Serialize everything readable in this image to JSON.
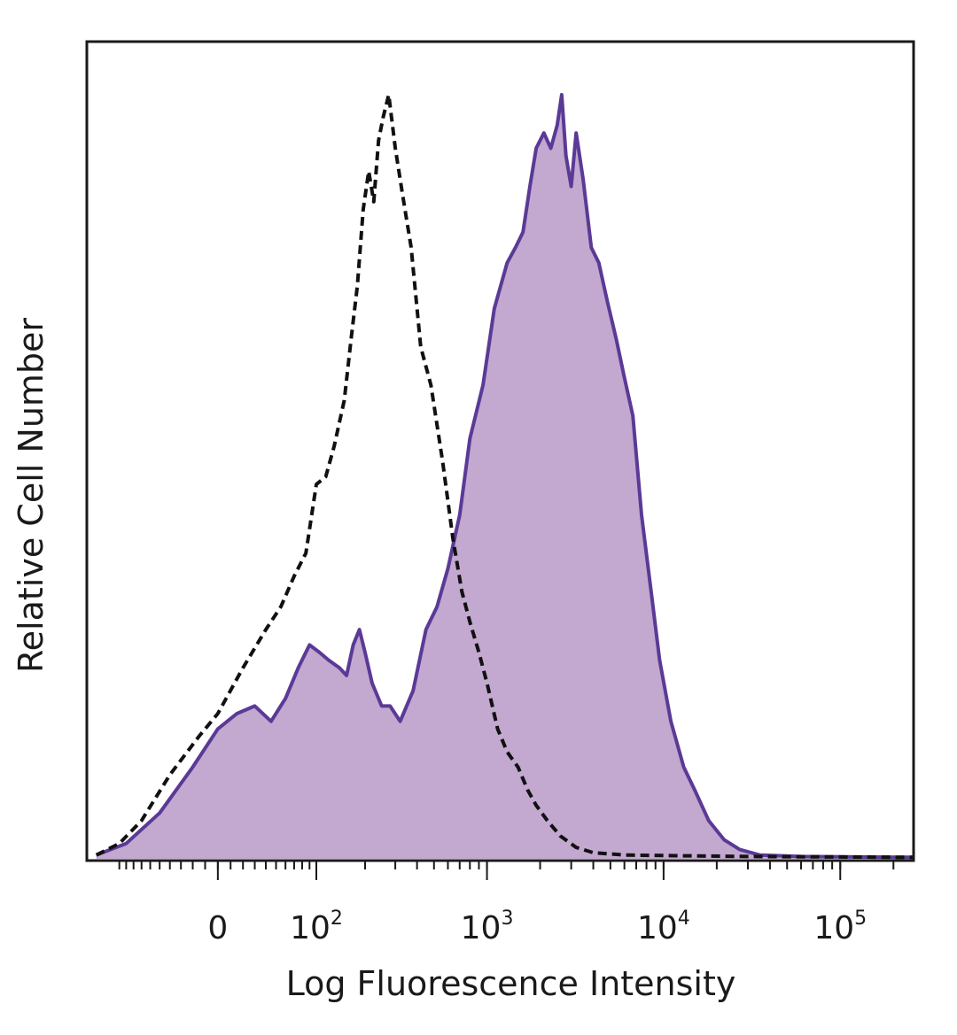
{
  "chart_data": {
    "type": "area",
    "xlabel": "Log Fluorescence Intensity",
    "ylabel": "Relative Cell Number",
    "x_scale": "biexponential",
    "ticks": [
      {
        "value": 0,
        "base": "0",
        "exp": ""
      },
      {
        "value": 100,
        "base": "10",
        "exp": "2"
      },
      {
        "value": 1000,
        "base": "10",
        "exp": "3"
      },
      {
        "value": 10000,
        "base": "10",
        "exp": "4"
      },
      {
        "value": 100000,
        "base": "10",
        "exp": "5"
      }
    ],
    "xlim": [
      -160,
      260000
    ],
    "ylim": [
      0,
      100
    ],
    "grid": false,
    "colors": {
      "filled_series_stroke": "#5a3a96",
      "filled_series_fill": "#c3a8cf",
      "control_series_stroke": "#111111"
    },
    "series": [
      {
        "style": "filled-solid",
        "points": [
          [
            -140,
            0.5
          ],
          [
            -90,
            2
          ],
          [
            -50,
            6
          ],
          [
            -20,
            12
          ],
          [
            0,
            17
          ],
          [
            15,
            19
          ],
          [
            30,
            20
          ],
          [
            45,
            18
          ],
          [
            60,
            21
          ],
          [
            75,
            25
          ],
          [
            90,
            28
          ],
          [
            105,
            27
          ],
          [
            120,
            26
          ],
          [
            140,
            25
          ],
          [
            155,
            24
          ],
          [
            170,
            28
          ],
          [
            185,
            30
          ],
          [
            200,
            27
          ],
          [
            220,
            23
          ],
          [
            250,
            20
          ],
          [
            280,
            20
          ],
          [
            320,
            18
          ],
          [
            380,
            22
          ],
          [
            450,
            30
          ],
          [
            520,
            33
          ],
          [
            600,
            38
          ],
          [
            700,
            45
          ],
          [
            800,
            55
          ],
          [
            950,
            62
          ],
          [
            1100,
            72
          ],
          [
            1300,
            78
          ],
          [
            1450,
            80
          ],
          [
            1600,
            82
          ],
          [
            1750,
            88
          ],
          [
            1900,
            93
          ],
          [
            2100,
            95
          ],
          [
            2300,
            93
          ],
          [
            2500,
            96
          ],
          [
            2650,
            100
          ],
          [
            2800,
            92
          ],
          [
            3000,
            88
          ],
          [
            3200,
            95
          ],
          [
            3500,
            89
          ],
          [
            3900,
            80
          ],
          [
            4300,
            78
          ],
          [
            4800,
            73
          ],
          [
            5400,
            68
          ],
          [
            6000,
            63
          ],
          [
            6700,
            58
          ],
          [
            7500,
            45
          ],
          [
            8500,
            35
          ],
          [
            9500,
            26
          ],
          [
            11000,
            18
          ],
          [
            13000,
            12
          ],
          [
            15000,
            9
          ],
          [
            18000,
            5
          ],
          [
            22000,
            2.5
          ],
          [
            27000,
            1.2
          ],
          [
            35000,
            0.5
          ],
          [
            60000,
            0.3
          ],
          [
            260000,
            0.2
          ]
        ]
      },
      {
        "style": "dashed-unfilled",
        "points": [
          [
            -140,
            0.5
          ],
          [
            -100,
            2
          ],
          [
            -70,
            5
          ],
          [
            -40,
            11
          ],
          [
            -15,
            16
          ],
          [
            0,
            19
          ],
          [
            20,
            25
          ],
          [
            40,
            30
          ],
          [
            55,
            33
          ],
          [
            70,
            37
          ],
          [
            85,
            40
          ],
          [
            100,
            49
          ],
          [
            115,
            50
          ],
          [
            130,
            54
          ],
          [
            150,
            60
          ],
          [
            165,
            68
          ],
          [
            180,
            75
          ],
          [
            195,
            85
          ],
          [
            210,
            90
          ],
          [
            225,
            86
          ],
          [
            240,
            94
          ],
          [
            255,
            97
          ],
          [
            275,
            100
          ],
          [
            300,
            93
          ],
          [
            330,
            87
          ],
          [
            370,
            80
          ],
          [
            420,
            67
          ],
          [
            480,
            62
          ],
          [
            560,
            52
          ],
          [
            640,
            42
          ],
          [
            720,
            35
          ],
          [
            800,
            31
          ],
          [
            900,
            27
          ],
          [
            1000,
            23
          ],
          [
            1150,
            17
          ],
          [
            1300,
            14
          ],
          [
            1500,
            12
          ],
          [
            1700,
            9
          ],
          [
            1900,
            7
          ],
          [
            2200,
            5
          ],
          [
            2600,
            3
          ],
          [
            3200,
            1.5
          ],
          [
            4000,
            0.8
          ],
          [
            6000,
            0.5
          ],
          [
            12000,
            0.4
          ],
          [
            30000,
            0.3
          ],
          [
            260000,
            0.2
          ]
        ]
      }
    ]
  }
}
